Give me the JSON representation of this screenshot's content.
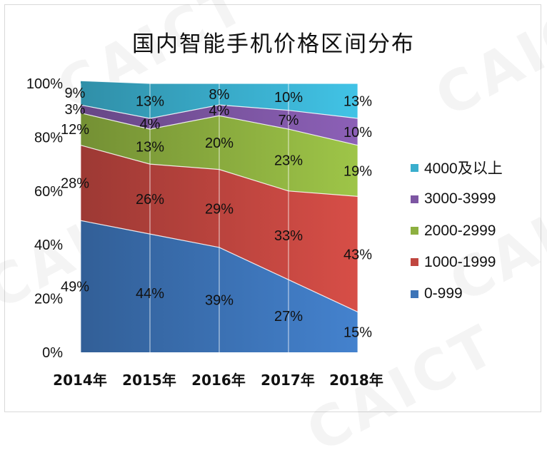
{
  "title": "国内智能手机价格区间分布",
  "watermark_text": "CAICT",
  "colors": {
    "4000+": "#3aaecd",
    "3000-3999": "#7d56a3",
    "2000-2999": "#8db040",
    "1000-1999": "#c0463f",
    "0-999": "#3d74b8"
  },
  "chart_data": {
    "type": "area",
    "stacked": true,
    "percent": true,
    "title": "国内智能手机价格区间分布",
    "categories": [
      "2014年",
      "2015年",
      "2016年",
      "2017年",
      "2018年"
    ],
    "ylim": [
      0,
      100
    ],
    "yticks": [
      {
        "value": 0,
        "label": "0%"
      },
      {
        "value": 20,
        "label": "20%"
      },
      {
        "value": 40,
        "label": "40%"
      },
      {
        "value": 60,
        "label": "60%"
      },
      {
        "value": 80,
        "label": "80%"
      },
      {
        "value": 100,
        "label": "100%"
      }
    ],
    "grid": "vertical",
    "legend_position": "right",
    "series": [
      {
        "key": "0-999",
        "name": "0-999",
        "values": [
          49,
          44,
          39,
          27,
          15
        ],
        "labels": [
          "49%",
          "44%",
          "39%",
          "27%",
          "15%"
        ]
      },
      {
        "key": "1000-1999",
        "name": "1000-1999",
        "values": [
          28,
          26,
          29,
          33,
          43
        ],
        "labels": [
          "28%",
          "26%",
          "29%",
          "33%",
          "43%"
        ]
      },
      {
        "key": "2000-2999",
        "name": "2000-2999",
        "values": [
          12,
          13,
          20,
          23,
          19
        ],
        "labels": [
          "12%",
          "13%",
          "20%",
          "23%",
          "19%"
        ]
      },
      {
        "key": "3000-3999",
        "name": "3000-3999",
        "values": [
          3,
          4,
          4,
          7,
          10
        ],
        "labels": [
          "3%",
          "4%",
          "4%",
          "7%",
          "10%"
        ]
      },
      {
        "key": "4000+",
        "name": "4000及以上",
        "values": [
          9,
          13,
          8,
          10,
          13
        ],
        "labels": [
          "9%",
          "13%",
          "8%",
          "10%",
          "13%"
        ]
      }
    ]
  }
}
